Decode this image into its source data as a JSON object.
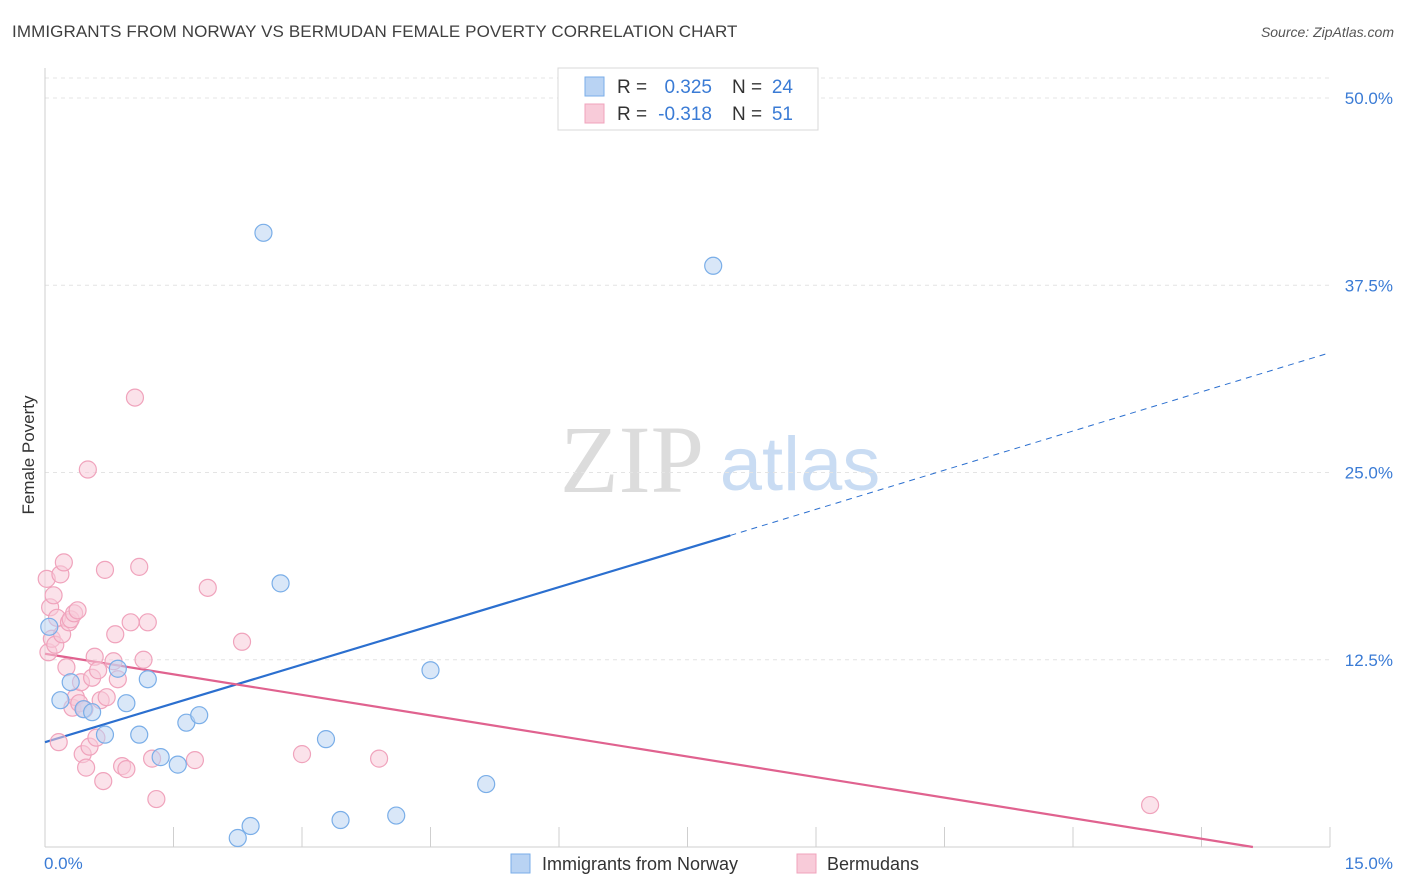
{
  "header": {
    "title": "IMMIGRANTS FROM NORWAY VS BERMUDAN FEMALE POVERTY CORRELATION CHART",
    "source": "Source: ZipAtlas.com"
  },
  "watermark": {
    "zip": "ZIP",
    "atlas": "atlas"
  },
  "chart_data": {
    "type": "scatter",
    "ylabel": "Female Poverty",
    "xlim": [
      0,
      15
    ],
    "ylim": [
      0,
      50
    ],
    "x_tick_labels": [
      "0.0%",
      "15.0%"
    ],
    "y_ticks": [
      12.5,
      25.0,
      37.5,
      50.0
    ],
    "y_tick_labels": [
      "12.5%",
      "25.0%",
      "37.5%",
      "50.0%"
    ],
    "grid": true,
    "legend_placement": "top-center",
    "stats": [
      {
        "r_label": "R =",
        "r_value": "0.325",
        "n_label": "N =",
        "n_value": "24"
      },
      {
        "r_label": "R =",
        "r_value": "-0.318",
        "n_label": "N =",
        "n_value": "51"
      }
    ],
    "series": [
      {
        "name": "Immigrants from Norway",
        "color": "#7aaee8",
        "fill": "#b9d3f3",
        "line_color": "#2b6fcf",
        "trend": {
          "x0": 0.0,
          "y0": 7.0,
          "x1": 8.0,
          "y1": 20.8,
          "dash_to_x": 15.0,
          "dash_to_y": 33.0
        },
        "points": [
          [
            0.05,
            14.7
          ],
          [
            0.18,
            9.8
          ],
          [
            0.3,
            11.0
          ],
          [
            0.45,
            9.2
          ],
          [
            0.55,
            9.0
          ],
          [
            0.7,
            7.5
          ],
          [
            0.85,
            11.9
          ],
          [
            0.95,
            9.6
          ],
          [
            1.1,
            7.5
          ],
          [
            1.2,
            11.2
          ],
          [
            1.35,
            6.0
          ],
          [
            1.55,
            5.5
          ],
          [
            1.65,
            8.3
          ],
          [
            1.8,
            8.8
          ],
          [
            2.25,
            0.6
          ],
          [
            2.4,
            1.4
          ],
          [
            2.55,
            41.0
          ],
          [
            2.75,
            17.6
          ],
          [
            3.28,
            7.2
          ],
          [
            3.45,
            1.8
          ],
          [
            4.1,
            2.1
          ],
          [
            4.5,
            11.8
          ],
          [
            5.15,
            4.2
          ],
          [
            7.8,
            38.8
          ]
        ]
      },
      {
        "name": "Bermudans",
        "color": "#f0a3bc",
        "fill": "#f8cbd9",
        "line_color": "#e0628f",
        "trend": {
          "x0": 0.0,
          "y0": 12.9,
          "x1": 14.1,
          "y1": 0.0
        },
        "points": [
          [
            0.02,
            17.9
          ],
          [
            0.04,
            13.0
          ],
          [
            0.06,
            16.0
          ],
          [
            0.08,
            13.9
          ],
          [
            0.1,
            16.8
          ],
          [
            0.12,
            13.5
          ],
          [
            0.14,
            15.3
          ],
          [
            0.16,
            7.0
          ],
          [
            0.18,
            18.2
          ],
          [
            0.2,
            14.2
          ],
          [
            0.22,
            19.0
          ],
          [
            0.25,
            12.0
          ],
          [
            0.28,
            15.0
          ],
          [
            0.3,
            15.2
          ],
          [
            0.32,
            9.3
          ],
          [
            0.34,
            15.6
          ],
          [
            0.36,
            10.0
          ],
          [
            0.38,
            15.8
          ],
          [
            0.4,
            9.6
          ],
          [
            0.42,
            11.0
          ],
          [
            0.44,
            6.2
          ],
          [
            0.46,
            9.2
          ],
          [
            0.48,
            5.3
          ],
          [
            0.5,
            25.2
          ],
          [
            0.52,
            6.7
          ],
          [
            0.55,
            11.3
          ],
          [
            0.58,
            12.7
          ],
          [
            0.6,
            7.3
          ],
          [
            0.62,
            11.8
          ],
          [
            0.65,
            9.8
          ],
          [
            0.68,
            4.4
          ],
          [
            0.7,
            18.5
          ],
          [
            0.72,
            10.0
          ],
          [
            0.8,
            12.4
          ],
          [
            0.82,
            14.2
          ],
          [
            0.85,
            11.2
          ],
          [
            0.9,
            5.4
          ],
          [
            0.95,
            5.2
          ],
          [
            1.0,
            15.0
          ],
          [
            1.05,
            30.0
          ],
          [
            1.1,
            18.7
          ],
          [
            1.15,
            12.5
          ],
          [
            1.2,
            15.0
          ],
          [
            1.25,
            5.9
          ],
          [
            1.3,
            3.2
          ],
          [
            1.75,
            5.8
          ],
          [
            1.9,
            17.3
          ],
          [
            2.3,
            13.7
          ],
          [
            3.0,
            6.2
          ],
          [
            3.9,
            5.9
          ],
          [
            12.9,
            2.8
          ]
        ]
      }
    ]
  }
}
